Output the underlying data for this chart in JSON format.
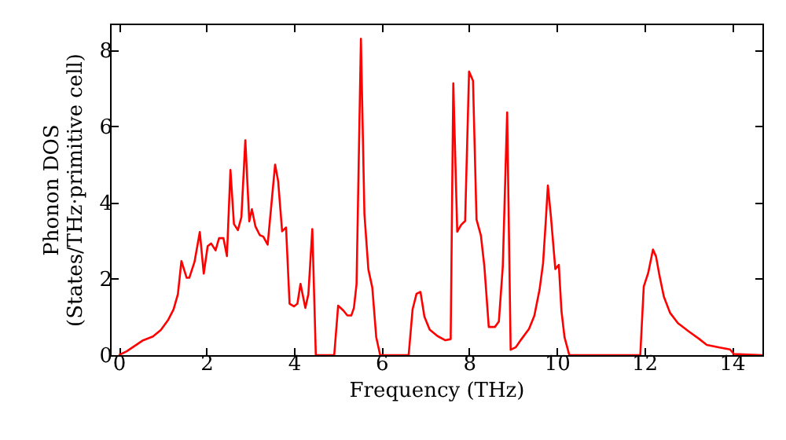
{
  "chart_data": {
    "type": "line",
    "xlabel": "Frequency (THz)",
    "ylabel": "Phonon DOS\n(States/THz·primitive cell)",
    "x": [
      0,
      0.18,
      0.54,
      0.78,
      0.96,
      1.13,
      1.25,
      1.35,
      1.43,
      1.55,
      1.61,
      1.73,
      1.85,
      1.94,
      2.03,
      2.11,
      2.21,
      2.29,
      2.39,
      2.47,
      2.55,
      2.63,
      2.72,
      2.8,
      2.89,
      2.98,
      3.04,
      3.12,
      3.22,
      3.3,
      3.4,
      3.57,
      3.64,
      3.73,
      3.82,
      3.9,
      4.0,
      4.08,
      4.15,
      4.26,
      4.33,
      4.42,
      4.5,
      4.92,
      5.01,
      5.13,
      5.22,
      5.31,
      5.37,
      5.43,
      5.53,
      5.61,
      5.7,
      5.79,
      5.88,
      5.97,
      6.62,
      6.71,
      6.8,
      6.89,
      6.98,
      7.1,
      7.28,
      7.46,
      7.58,
      7.64,
      7.73,
      7.82,
      7.91,
      8.0,
      8.09,
      8.17,
      8.27,
      8.35,
      8.45,
      8.59,
      8.68,
      8.77,
      8.87,
      8.95,
      9.07,
      9.19,
      9.37,
      9.49,
      9.61,
      9.69,
      9.75,
      9.8,
      9.87,
      9.97,
      10.05,
      10.11,
      10.18,
      10.29,
      11.91,
      11.99,
      12.09,
      12.2,
      12.27,
      12.35,
      12.45,
      12.59,
      12.77,
      13.01,
      13.25,
      13.43,
      13.72,
      13.96,
      14.05,
      14.7
    ],
    "series": [
      {
        "color": "#ff0000",
        "values": [
          0,
          0.1,
          0.38,
          0.49,
          0.66,
          0.93,
          1.2,
          1.6,
          2.47,
          2.03,
          2.03,
          2.45,
          3.23,
          2.14,
          2.86,
          2.93,
          2.75,
          3.07,
          3.07,
          2.6,
          4.86,
          3.44,
          3.28,
          3.62,
          5.64,
          3.51,
          3.83,
          3.38,
          3.15,
          3.11,
          2.9,
          5.0,
          4.56,
          3.25,
          3.35,
          1.35,
          1.28,
          1.35,
          1.87,
          1.24,
          1.6,
          3.31,
          0,
          0,
          1.3,
          1.17,
          1.04,
          1.04,
          1.24,
          1.86,
          8.3,
          3.7,
          2.25,
          1.77,
          0.47,
          0,
          0,
          1.2,
          1.61,
          1.66,
          1.01,
          0.67,
          0.5,
          0.39,
          0.42,
          7.13,
          3.24,
          3.42,
          3.52,
          7.44,
          7.2,
          3.56,
          3.14,
          2.32,
          0.74,
          0.74,
          0.88,
          2.32,
          6.37,
          0.14,
          0.21,
          0.41,
          0.69,
          1.03,
          1.72,
          2.41,
          3.48,
          4.45,
          3.63,
          2.26,
          2.37,
          1.16,
          0.47,
          0,
          0,
          1.8,
          2.15,
          2.77,
          2.59,
          2.08,
          1.53,
          1.11,
          0.84,
          0.63,
          0.43,
          0.27,
          0.2,
          0.15,
          0.03,
          0
        ]
      }
    ],
    "xlim": [
      -0.2,
      14.7
    ],
    "ylim": [
      0,
      8.7
    ],
    "xticks": [
      0,
      2,
      4,
      6,
      8,
      10,
      12,
      14
    ],
    "yticks": [
      0,
      2,
      4,
      6,
      8
    ],
    "grid": false,
    "marker": "none",
    "line_style": "solid"
  }
}
